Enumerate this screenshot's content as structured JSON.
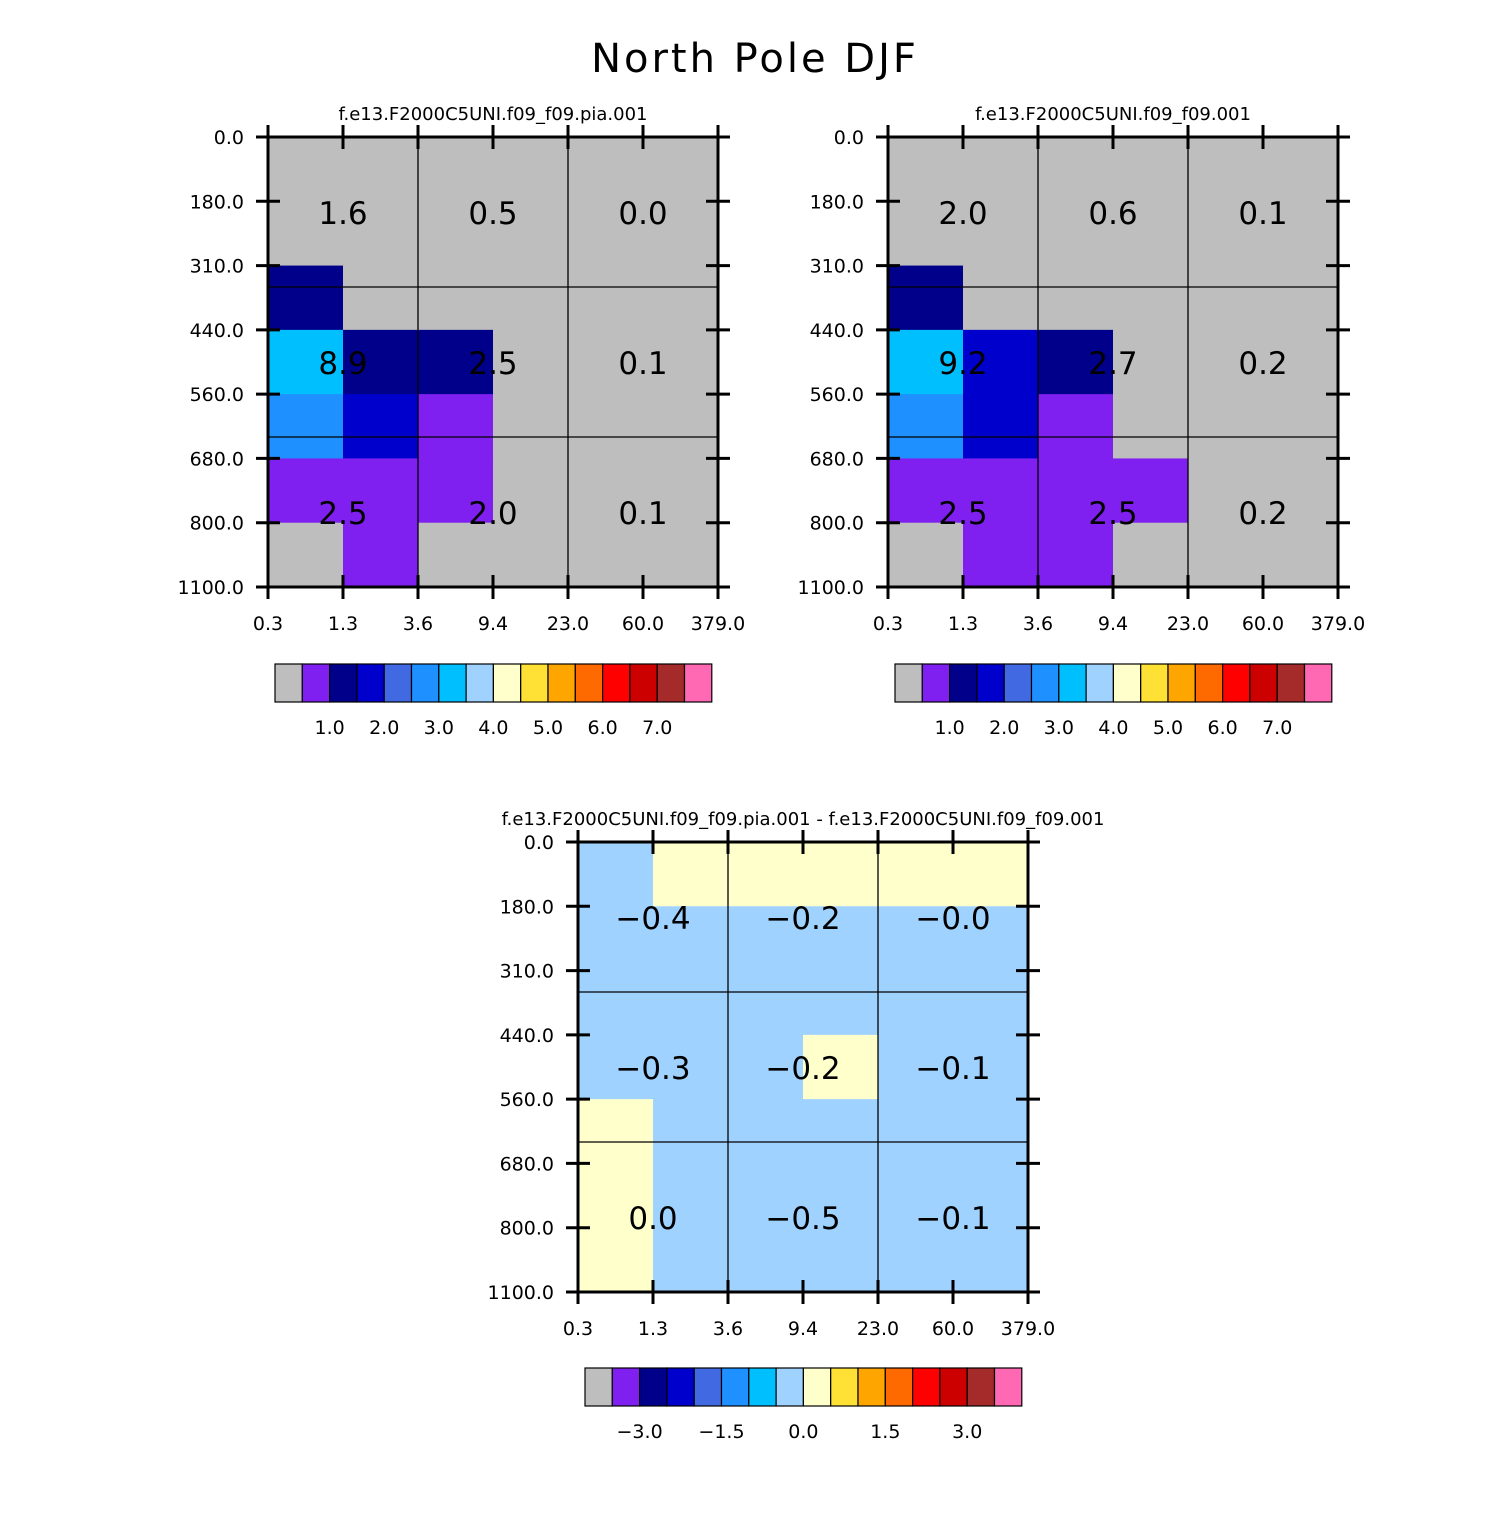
{
  "page": {
    "title": "North Pole DJF"
  },
  "colormaps": {
    "main": [
      "#bebebe",
      "#8020f0",
      "#00008b",
      "#0000cd",
      "#4169e1",
      "#1e90ff",
      "#00bfff",
      "#a0d2ff",
      "#ffffcc",
      "#ffe135",
      "#ffa500",
      "#ff6a00",
      "#ff0000",
      "#cd0000",
      "#a52a2a",
      "#ff69b4"
    ],
    "main_levels": [
      0,
      1,
      2,
      3,
      4,
      5,
      6,
      7
    ],
    "diff": [
      "#bebebe",
      "#8020f0",
      "#00008b",
      "#0000cd",
      "#4169e1",
      "#1e90ff",
      "#00bfff",
      "#a0d2ff",
      "#ffffcc",
      "#ffe135",
      "#ffa500",
      "#ff6a00",
      "#ff0000",
      "#cd0000",
      "#a52a2a",
      "#ff69b4"
    ],
    "diff_levels": [
      -3.0,
      -2.5,
      -2.0,
      -1.5,
      -1.0,
      -0.5,
      0.0,
      0.5,
      1.0,
      1.5,
      2.0,
      2.5,
      3.0
    ]
  },
  "chart_data": [
    {
      "type": "heatmap",
      "title": "f.e13.F2000C5UNI.f09_f09.pia.001",
      "x_ticks": [
        "0.3",
        "1.3",
        "3.6",
        "9.4",
        "23.0",
        "60.0",
        "379.0"
      ],
      "y_ticks": [
        "0.0",
        "180.0",
        "310.0",
        "440.0",
        "560.0",
        "680.0",
        "800.0",
        "1100.0"
      ],
      "cell_color_index": [
        [
          0,
          0,
          0,
          0,
          0,
          0
        ],
        [
          0,
          0,
          0,
          0,
          0,
          0
        ],
        [
          2,
          0,
          0,
          0,
          0,
          0
        ],
        [
          6,
          2,
          2,
          0,
          0,
          0
        ],
        [
          5,
          3,
          1,
          0,
          0,
          0
        ],
        [
          1,
          1,
          1,
          0,
          0,
          0
        ],
        [
          0,
          1,
          0,
          0,
          0,
          0
        ]
      ],
      "summary_values": [
        [
          "1.6",
          "0.5",
          "0.0"
        ],
        [
          "8.9",
          "2.5",
          "0.1"
        ],
        [
          "2.5",
          "2.0",
          "0.1"
        ]
      ],
      "colorbar": {
        "labels": [
          "1.0",
          "2.0",
          "3.0",
          "4.0",
          "5.0",
          "6.0",
          "7.0"
        ],
        "colormap": "main"
      }
    },
    {
      "type": "heatmap",
      "title": "f.e13.F2000C5UNI.f09_f09.001",
      "x_ticks": [
        "0.3",
        "1.3",
        "3.6",
        "9.4",
        "23.0",
        "60.0",
        "379.0"
      ],
      "y_ticks": [
        "0.0",
        "180.0",
        "310.0",
        "440.0",
        "560.0",
        "680.0",
        "800.0",
        "1100.0"
      ],
      "cell_color_index": [
        [
          0,
          0,
          0,
          0,
          0,
          0
        ],
        [
          0,
          0,
          0,
          0,
          0,
          0
        ],
        [
          2,
          0,
          0,
          0,
          0,
          0
        ],
        [
          6,
          3,
          2,
          0,
          0,
          0
        ],
        [
          5,
          3,
          1,
          0,
          0,
          0
        ],
        [
          1,
          1,
          1,
          1,
          0,
          0
        ],
        [
          0,
          1,
          1,
          0,
          0,
          0
        ]
      ],
      "summary_values": [
        [
          "2.0",
          "0.6",
          "0.1"
        ],
        [
          "9.2",
          "2.7",
          "0.2"
        ],
        [
          "2.5",
          "2.5",
          "0.2"
        ]
      ],
      "colorbar": {
        "labels": [
          "1.0",
          "2.0",
          "3.0",
          "4.0",
          "5.0",
          "6.0",
          "7.0"
        ],
        "colormap": "main"
      }
    },
    {
      "type": "heatmap",
      "title": "f.e13.F2000C5UNI.f09_f09.pia.001 - f.e13.F2000C5UNI.f09_f09.001",
      "x_ticks": [
        "0.3",
        "1.3",
        "3.6",
        "9.4",
        "23.0",
        "60.0",
        "379.0"
      ],
      "y_ticks": [
        "0.0",
        "180.0",
        "310.0",
        "440.0",
        "560.0",
        "680.0",
        "800.0",
        "1100.0"
      ],
      "cell_color_index": [
        [
          7,
          8,
          8,
          8,
          8,
          8
        ],
        [
          7,
          7,
          7,
          7,
          7,
          7
        ],
        [
          7,
          7,
          7,
          7,
          7,
          7
        ],
        [
          7,
          7,
          7,
          8,
          7,
          7
        ],
        [
          8,
          7,
          7,
          7,
          7,
          7
        ],
        [
          8,
          7,
          7,
          7,
          7,
          7
        ],
        [
          8,
          7,
          7,
          7,
          7,
          7
        ]
      ],
      "summary_values": [
        [
          "-0.4",
          "-0.2",
          "-0.0"
        ],
        [
          "-0.3",
          "-0.2",
          "-0.1"
        ],
        [
          "0.0",
          "-0.5",
          "-0.1"
        ]
      ],
      "colorbar": {
        "labels": [
          "-3.0",
          "-1.5",
          "0.0",
          "1.5",
          "3.0"
        ],
        "colormap": "diff"
      }
    }
  ]
}
